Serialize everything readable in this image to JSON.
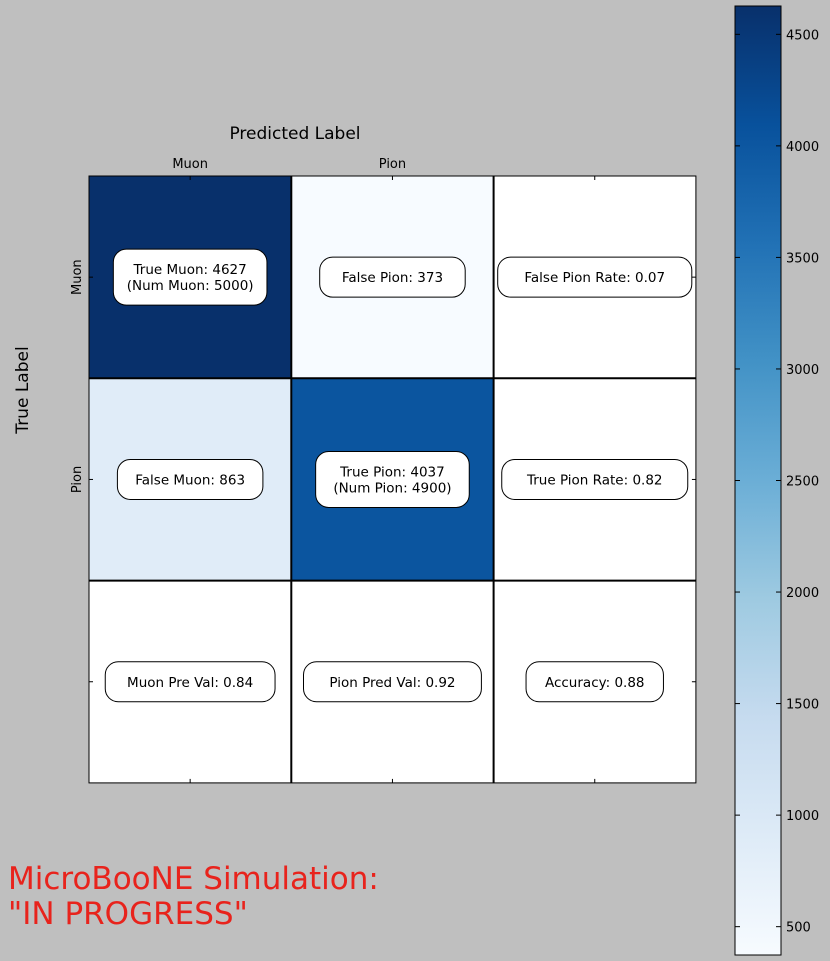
{
  "chart_data": {
    "type": "heatmap",
    "title": "Predicted Label",
    "xlabel": "Predicted Label",
    "ylabel": "True Label",
    "x_tick_labels": [
      "Muon",
      "Pion",
      ""
    ],
    "y_tick_labels": [
      "Muon",
      "Pion",
      ""
    ],
    "cells": [
      [
        {
          "value": 4627,
          "label": "True Muon: 4627\n(Num Muon: 5000)"
        },
        {
          "value": 373,
          "label": "False Pion: 373"
        },
        {
          "value": null,
          "label": "False Pion Rate: 0.07"
        }
      ],
      [
        {
          "value": 863,
          "label": "False Muon: 863"
        },
        {
          "value": 4037,
          "label": "True Pion: 4037\n(Num Pion: 4900)"
        },
        {
          "value": null,
          "label": "True Pion Rate: 0.82"
        }
      ],
      [
        {
          "value": null,
          "label": "Muon Pre Val: 0.84"
        },
        {
          "value": null,
          "label": "Pion Pred Val: 0.92"
        },
        {
          "value": null,
          "label": "Accuracy: 0.88"
        }
      ]
    ],
    "colormap": "Blues",
    "colorbar": {
      "range": [
        373,
        4627
      ],
      "ticks": [
        500,
        1000,
        1500,
        2000,
        2500,
        3000,
        3500,
        4000,
        4500
      ]
    }
  },
  "watermark": {
    "line1": "MicroBooNE Simulation:",
    "line2": "\"IN PROGRESS\"",
    "color": "#e8231c"
  }
}
